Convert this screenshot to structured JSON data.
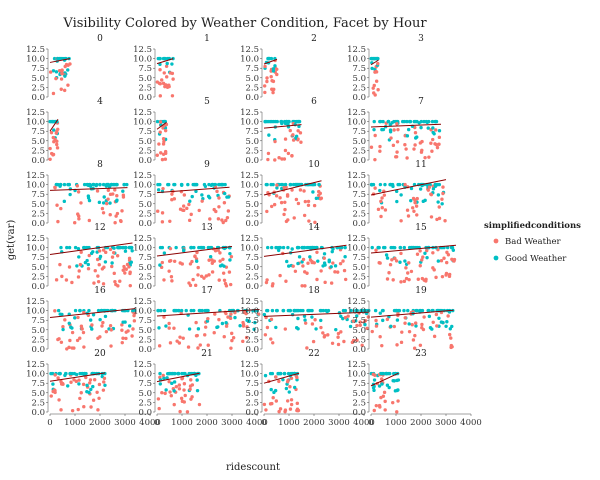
{
  "chart_data": {
    "type": "scatter",
    "title": "Visibility Colored by Weather Condition, Facet by Hour",
    "xlabel": "ridescount",
    "ylabel": "get(var)",
    "x_ticks": [
      "0",
      "1000",
      "2000",
      "3000",
      "4000"
    ],
    "y_ticks": [
      "0.0",
      "2.5",
      "5.0",
      "7.5",
      "10.0",
      "12.5"
    ],
    "xlim": [
      0,
      4000
    ],
    "ylim": [
      0,
      12.5
    ],
    "facet_labels": [
      "0",
      "1",
      "2",
      "3",
      "4",
      "5",
      "6",
      "7",
      "8",
      "9",
      "10",
      "11",
      "12",
      "13",
      "14",
      "15",
      "16",
      "17",
      "18",
      "19",
      "20",
      "21",
      "22",
      "23"
    ],
    "legend": {
      "title": "simplifiedconditions",
      "position": "right",
      "items": [
        {
          "name": "Bad Weather",
          "color": "#f8766d"
        },
        {
          "name": "Good Weather",
          "color": "#00bfc4"
        }
      ]
    },
    "trend_line_color": "#8b0000",
    "facets": [
      {
        "hour": 0,
        "max_rides": 800,
        "trend": [
          9.0,
          10.0
        ],
        "good_share": 0.55,
        "n": 40
      },
      {
        "hour": 1,
        "max_rides": 650,
        "trend": [
          8.7,
          10.0
        ],
        "good_share": 0.55,
        "n": 34
      },
      {
        "hour": 2,
        "max_rides": 520,
        "trend": [
          8.6,
          9.8
        ],
        "good_share": 0.5,
        "n": 32
      },
      {
        "hour": 3,
        "max_rides": 300,
        "trend": [
          8.4,
          9.6
        ],
        "good_share": 0.45,
        "n": 26
      },
      {
        "hour": 4,
        "max_rides": 320,
        "trend": [
          7.5,
          10.6
        ],
        "good_share": 0.45,
        "n": 28
      },
      {
        "hour": 5,
        "max_rides": 380,
        "trend": [
          8.0,
          9.8
        ],
        "good_share": 0.45,
        "n": 30
      },
      {
        "hour": 6,
        "max_rides": 1500,
        "trend": [
          8.3,
          9.2
        ],
        "good_share": 0.55,
        "n": 60
      },
      {
        "hour": 7,
        "max_rides": 2800,
        "trend": [
          8.6,
          9.3
        ],
        "good_share": 0.6,
        "n": 90
      },
      {
        "hour": 8,
        "max_rides": 3100,
        "trend": [
          8.5,
          9.2
        ],
        "good_share": 0.6,
        "n": 95
      },
      {
        "hour": 9,
        "max_rides": 2900,
        "trend": [
          7.9,
          9.3
        ],
        "good_share": 0.55,
        "n": 85
      },
      {
        "hour": 10,
        "max_rides": 2300,
        "trend": [
          7.3,
          11.0
        ],
        "good_share": 0.55,
        "n": 80
      },
      {
        "hour": 11,
        "max_rides": 3000,
        "trend": [
          7.3,
          11.3
        ],
        "good_share": 0.55,
        "n": 90
      },
      {
        "hour": 12,
        "max_rides": 3300,
        "trend": [
          8.2,
          11.2
        ],
        "good_share": 0.55,
        "n": 95
      },
      {
        "hour": 13,
        "max_rides": 3000,
        "trend": [
          7.8,
          10.3
        ],
        "good_share": 0.55,
        "n": 90
      },
      {
        "hour": 14,
        "max_rides": 3300,
        "trend": [
          7.7,
          10.6
        ],
        "good_share": 0.55,
        "n": 95
      },
      {
        "hour": 15,
        "max_rides": 3400,
        "trend": [
          8.6,
          10.6
        ],
        "good_share": 0.55,
        "n": 95
      },
      {
        "hour": 16,
        "max_rides": 3400,
        "trend": [
          8.2,
          10.5
        ],
        "good_share": 0.55,
        "n": 95
      },
      {
        "hour": 17,
        "max_rides": 4100,
        "trend": [
          8.6,
          10.3
        ],
        "good_share": 0.55,
        "n": 100
      },
      {
        "hour": 18,
        "max_rides": 4200,
        "trend": [
          8.5,
          9.6
        ],
        "good_share": 0.55,
        "n": 100
      },
      {
        "hour": 19,
        "max_rides": 3300,
        "trend": [
          8.3,
          10.1
        ],
        "good_share": 0.55,
        "n": 95
      },
      {
        "hour": 20,
        "max_rides": 2200,
        "trend": [
          8.0,
          10.2
        ],
        "good_share": 0.55,
        "n": 80
      },
      {
        "hour": 21,
        "max_rides": 1700,
        "trend": [
          7.9,
          10.1
        ],
        "good_share": 0.55,
        "n": 70
      },
      {
        "hour": 22,
        "max_rides": 1400,
        "trend": [
          7.5,
          10.1
        ],
        "good_share": 0.55,
        "n": 60
      },
      {
        "hour": 23,
        "max_rides": 1100,
        "trend": [
          6.8,
          10.1
        ],
        "good_share": 0.55,
        "n": 55
      }
    ]
  }
}
